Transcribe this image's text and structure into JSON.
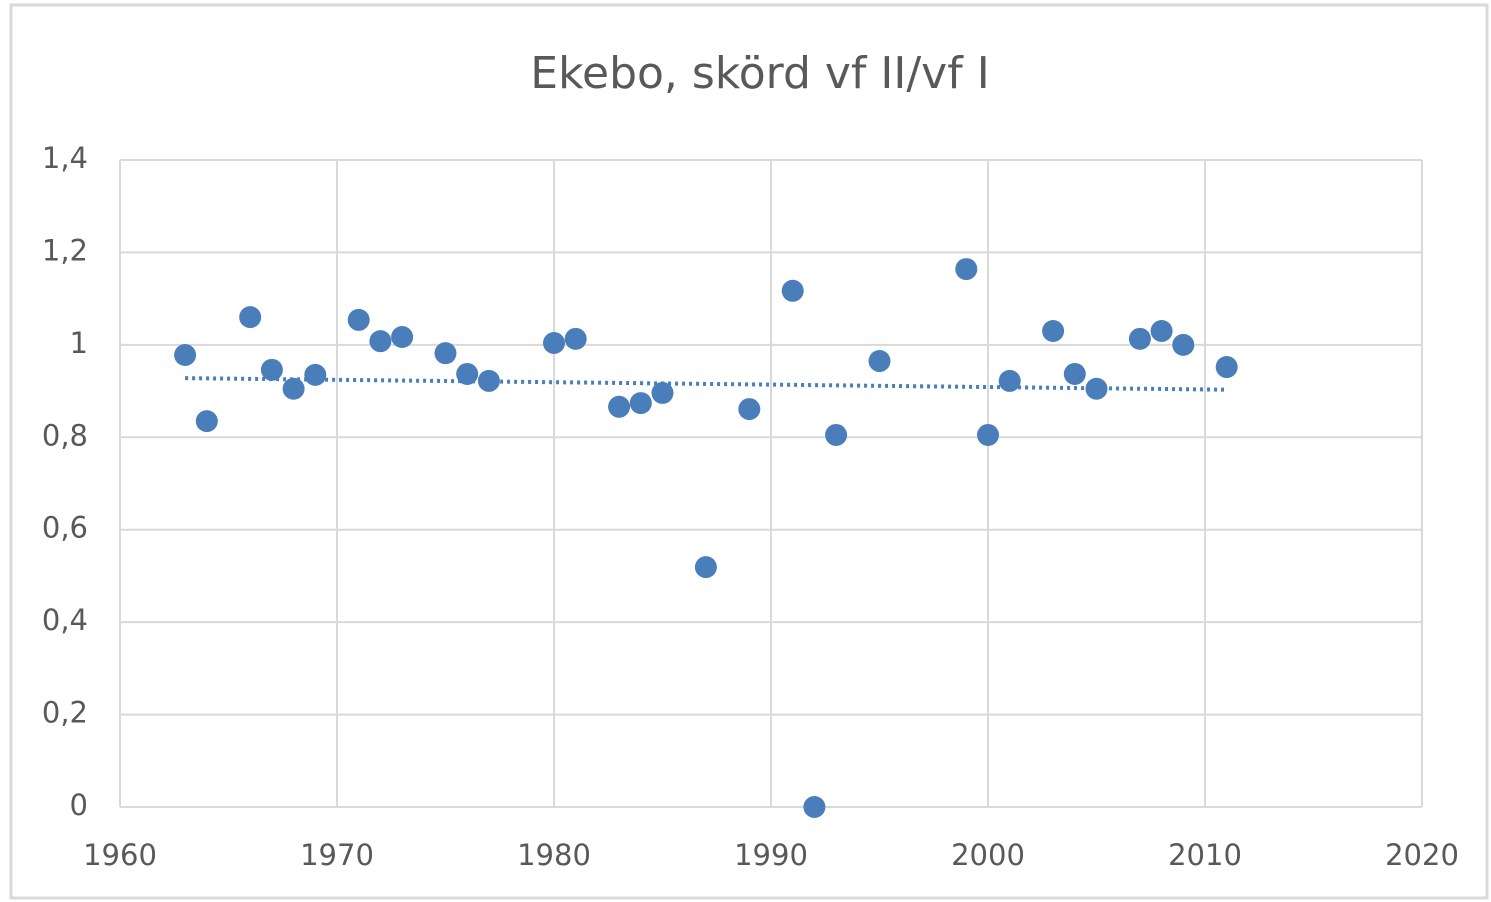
{
  "chart_data": {
    "type": "scatter",
    "title": "Ekebo, skörd vf II/vf I",
    "x": [
      1963,
      1964,
      1966,
      1967,
      1968,
      1969,
      1971,
      1972,
      1973,
      1975,
      1976,
      1977,
      1980,
      1981,
      1983,
      1984,
      1985,
      1987,
      1989,
      1991,
      1992,
      1993,
      1995,
      1999,
      2000,
      2001,
      2003,
      2004,
      2005,
      2007,
      2008,
      2009,
      2011
    ],
    "values": [
      0.978,
      0.835,
      1.06,
      0.946,
      0.905,
      0.935,
      1.054,
      1.008,
      1.017,
      0.982,
      0.937,
      0.922,
      1.004,
      1.013,
      0.866,
      0.874,
      0.896,
      0.519,
      0.861,
      1.117,
      0,
      0.805,
      0.965,
      1.164,
      0.805,
      0.922,
      1.03,
      0.937,
      0.905,
      1.013,
      1.03,
      1.0,
      0.952
    ],
    "color": "#4a7ebb",
    "trendline": {
      "x": [
        1963,
        2011
      ],
      "values": [
        0.928,
        0.903
      ],
      "color": "#4a7ebb"
    },
    "xlim": [
      1960,
      2020
    ],
    "xticks": [
      1960,
      1970,
      1980,
      1990,
      2000,
      2010,
      2020
    ],
    "ylim": [
      0,
      1.4
    ],
    "yticks": [
      0,
      {
        "value": 0.2,
        "label": "0,2"
      },
      {
        "value": 0.4,
        "label": "0,4"
      },
      {
        "value": 0.6,
        "label": "0,6"
      },
      {
        "value": 0.8,
        "label": "0,8"
      },
      1,
      {
        "value": 1.2,
        "label": "1,2"
      },
      {
        "value": 1.4,
        "label": "1,4"
      }
    ],
    "grid": true
  }
}
